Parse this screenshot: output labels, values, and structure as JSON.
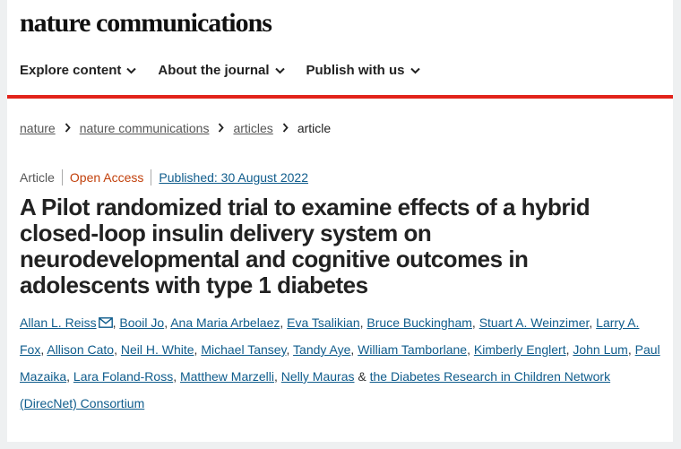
{
  "site": {
    "brand": "nature communications"
  },
  "nav": {
    "items": [
      {
        "label": "Explore content"
      },
      {
        "label": "About the journal"
      },
      {
        "label": "Publish with us"
      }
    ]
  },
  "colors": {
    "accent": "#e2231a",
    "open_access": "#c2410c",
    "link": "#0f5c8c"
  },
  "breadcrumb": {
    "items": [
      "nature",
      "nature communications",
      "articles"
    ],
    "current": "article"
  },
  "article": {
    "type": "Article",
    "access": "Open Access",
    "published": "Published: 30 August 2022",
    "title": "A Pilot randomized trial to examine effects of a hybrid closed-loop insulin delivery system on neurodevelopmental and cognitive outcomes in adolescents with type 1 diabetes",
    "authors": [
      "Allan L. Reiss",
      "Booil Jo",
      "Ana Maria Arbelaez",
      "Eva Tsalikian",
      "Bruce Buckingham",
      "Stuart A. Weinzimer",
      "Larry A. Fox",
      "Allison Cato",
      "Neil H. White",
      "Michael Tansey",
      "Tandy Aye",
      "William Tamborlane",
      "Kimberly Englert",
      "John Lum",
      "Paul Mazaika",
      "Lara Foland-Ross",
      "Matthew Marzelli",
      "Nelly Mauras"
    ],
    "conjunction": "&",
    "consortium": "the Diabetes Research in Children Network (DirecNet) Consortium"
  }
}
